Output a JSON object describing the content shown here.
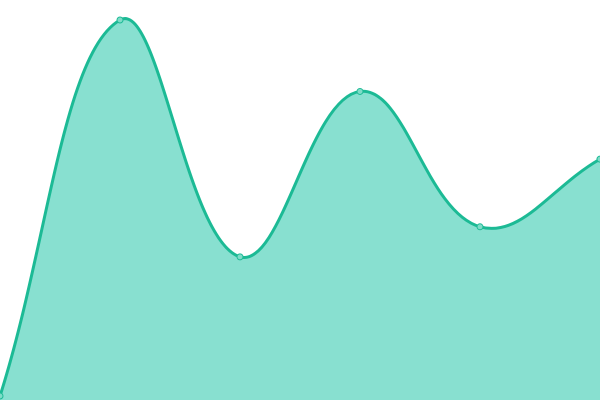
{
  "chart_data": {
    "type": "area",
    "x": [
      0,
      1,
      2,
      3,
      4,
      5
    ],
    "values": [
      0,
      100,
      37,
      81,
      45,
      63
    ],
    "ylim": [
      0,
      100
    ],
    "smoothing": "spline",
    "grid": false,
    "axes_visible": false,
    "colors": {
      "line": "#1cba95",
      "fill": "#88e0d0",
      "point_fill": "#7fdcc8"
    }
  }
}
